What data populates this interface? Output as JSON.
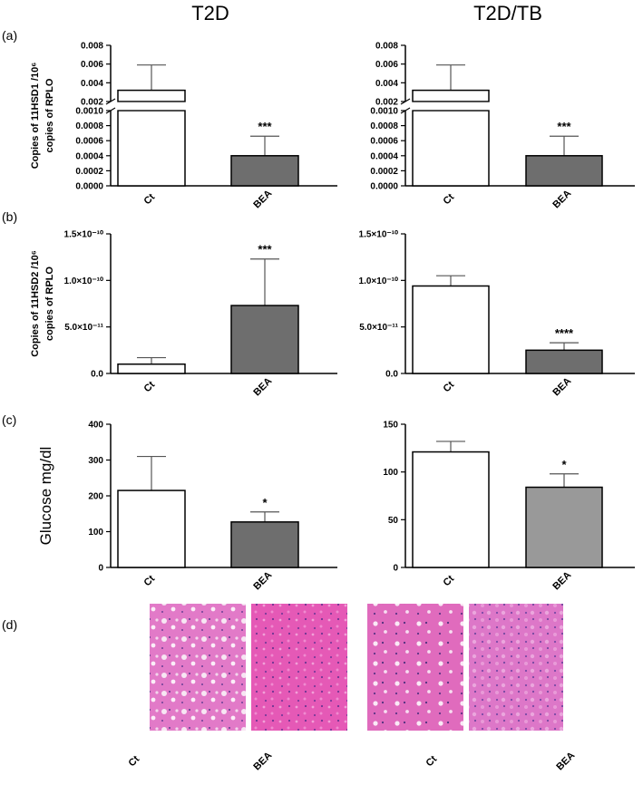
{
  "column_titles": [
    "T2D",
    "T2D/TB"
  ],
  "panel_labels": [
    "(a)",
    "(b)",
    "(c)",
    "(d)"
  ],
  "chart_data": [
    {
      "type": "bar",
      "ylabel_lines": [
        "Copies of  11HSD1 /10⁶",
        "copies of  RPLO"
      ],
      "categories": [
        "Ct",
        "BEA"
      ],
      "values": [
        0.0032,
        0.0004
      ],
      "errors": [
        0.0027,
        0.00026
      ],
      "annotations": [
        null,
        "***"
      ],
      "colors": [
        "#ffffff",
        "#6e6e6e"
      ],
      "ylim": [
        0,
        0.008
      ],
      "axis_break": [
        0.001,
        0.002
      ],
      "yticks": [
        {
          "value": 0,
          "label": "0.0000"
        },
        0.0002,
        0.0004,
        0.0006,
        0.0008,
        {
          "value": 0.001,
          "label": "0.0010"
        },
        0.002,
        0.004,
        0.006,
        0.008
      ]
    },
    {
      "type": "bar",
      "categories": [
        "Ct",
        "BEA"
      ],
      "values": [
        0.0032,
        0.0004
      ],
      "errors": [
        0.0027,
        0.00026
      ],
      "annotations": [
        null,
        "***"
      ],
      "colors": [
        "#ffffff",
        "#6e6e6e"
      ],
      "ylim": [
        0,
        0.008
      ],
      "axis_break": [
        0.001,
        0.002
      ],
      "yticks": [
        {
          "value": 0,
          "label": "0.0000"
        },
        0.0002,
        0.0004,
        0.0006,
        0.0008,
        {
          "value": 0.001,
          "label": "0.0010"
        },
        0.002,
        0.004,
        0.006,
        0.008
      ]
    },
    {
      "type": "bar",
      "ylabel_lines": [
        "Copies of  11HSD2 /10⁶",
        "copies of  RPLO"
      ],
      "categories": [
        "Ct",
        "BEA"
      ],
      "values": [
        1e-11,
        7.3e-11
      ],
      "errors": [
        7e-12,
        5e-11
      ],
      "annotations": [
        null,
        "***"
      ],
      "colors": [
        "#ffffff",
        "#6e6e6e"
      ],
      "ylim": [
        0,
        1.5e-10
      ],
      "yticks": [
        {
          "value": 0,
          "label": "0.0"
        },
        {
          "value": 5e-11,
          "label": "5.0×10⁻¹¹"
        },
        {
          "value": 1e-10,
          "label": "1.0×10⁻¹⁰"
        },
        {
          "value": 1.5e-10,
          "label": "1.5×10⁻¹⁰"
        }
      ]
    },
    {
      "type": "bar",
      "categories": [
        "Ct",
        "BEA"
      ],
      "values": [
        9.4e-11,
        2.5e-11
      ],
      "errors": [
        1.1e-11,
        8e-12
      ],
      "annotations": [
        null,
        "****"
      ],
      "colors": [
        "#ffffff",
        "#6e6e6e"
      ],
      "ylim": [
        0,
        1.5e-10
      ],
      "yticks": [
        {
          "value": 0,
          "label": "0.0"
        },
        {
          "value": 5e-11,
          "label": "5.0×10⁻¹¹"
        },
        {
          "value": 1e-10,
          "label": "1.0×10⁻¹⁰"
        },
        {
          "value": 1.5e-10,
          "label": "1.5×10⁻¹⁰"
        }
      ]
    },
    {
      "type": "bar",
      "ylabel": "Glucose mg/dl",
      "categories": [
        "Ct",
        "BEA"
      ],
      "values": [
        215,
        127
      ],
      "errors": [
        95,
        28
      ],
      "annotations": [
        null,
        "*"
      ],
      "colors": [
        "#ffffff",
        "#6e6e6e"
      ],
      "ylim": [
        0,
        400
      ],
      "yticks": [
        0,
        100,
        200,
        300,
        400
      ]
    },
    {
      "type": "bar",
      "categories": [
        "Ct",
        "BEA"
      ],
      "values": [
        121,
        84
      ],
      "errors": [
        11,
        14
      ],
      "annotations": [
        null,
        "*"
      ],
      "colors": [
        "#ffffff",
        "#999999"
      ],
      "ylim": [
        0,
        150
      ],
      "yticks": [
        0,
        50,
        100,
        150
      ]
    }
  ],
  "histology": {
    "labels": [
      "Ct",
      "BEA",
      "Ct",
      "BEA"
    ]
  }
}
